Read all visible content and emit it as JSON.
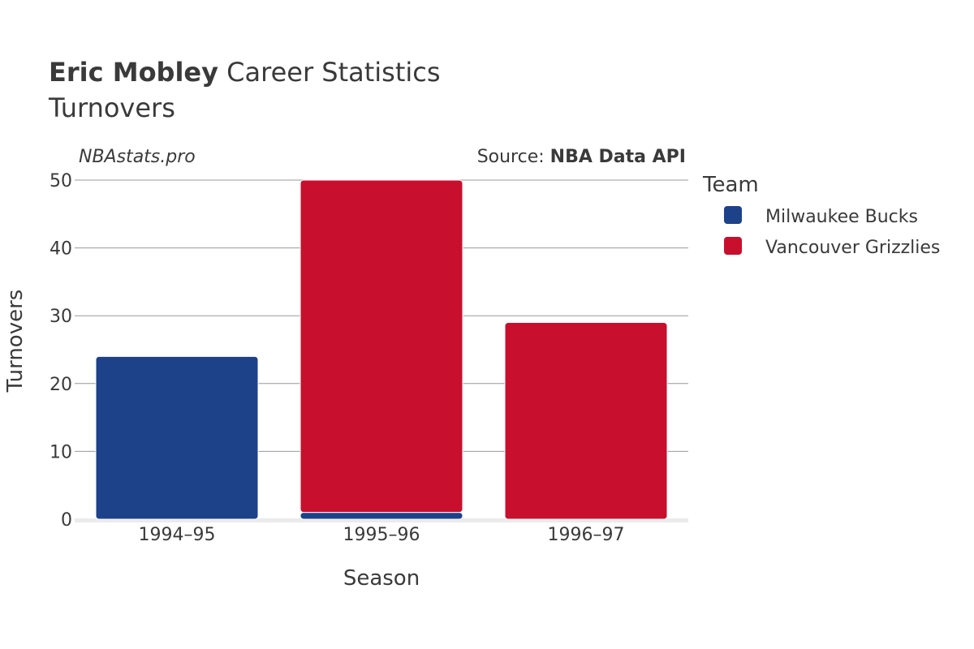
{
  "title": {
    "player": "Eric Mobley",
    "suffix": " Career Statistics",
    "subtitle": "Turnovers"
  },
  "watermark": "NBAstats.pro",
  "source": {
    "prefix": "Source: ",
    "name": "NBA Data API"
  },
  "colors": {
    "milwaukee": "#1d428a",
    "vancouver": "#c8102e",
    "grid": "#999999",
    "text": "#3a3a3a"
  },
  "chart_data": {
    "type": "bar",
    "stacked": true,
    "categories": [
      "1994–95",
      "1995–96",
      "1996–97"
    ],
    "series": [
      {
        "name": "Milwaukee Bucks",
        "color": "#1d428a",
        "values": [
          24,
          1,
          0
        ]
      },
      {
        "name": "Vancouver Grizzlies",
        "color": "#c8102e",
        "values": [
          0,
          49,
          29
        ]
      }
    ],
    "xlabel": "Season",
    "ylabel": "Turnovers",
    "ylim": [
      0,
      50
    ],
    "yticks": [
      0,
      10,
      20,
      30,
      40,
      50
    ],
    "grid": true,
    "legend": {
      "title": "Team",
      "placement": "right"
    }
  }
}
